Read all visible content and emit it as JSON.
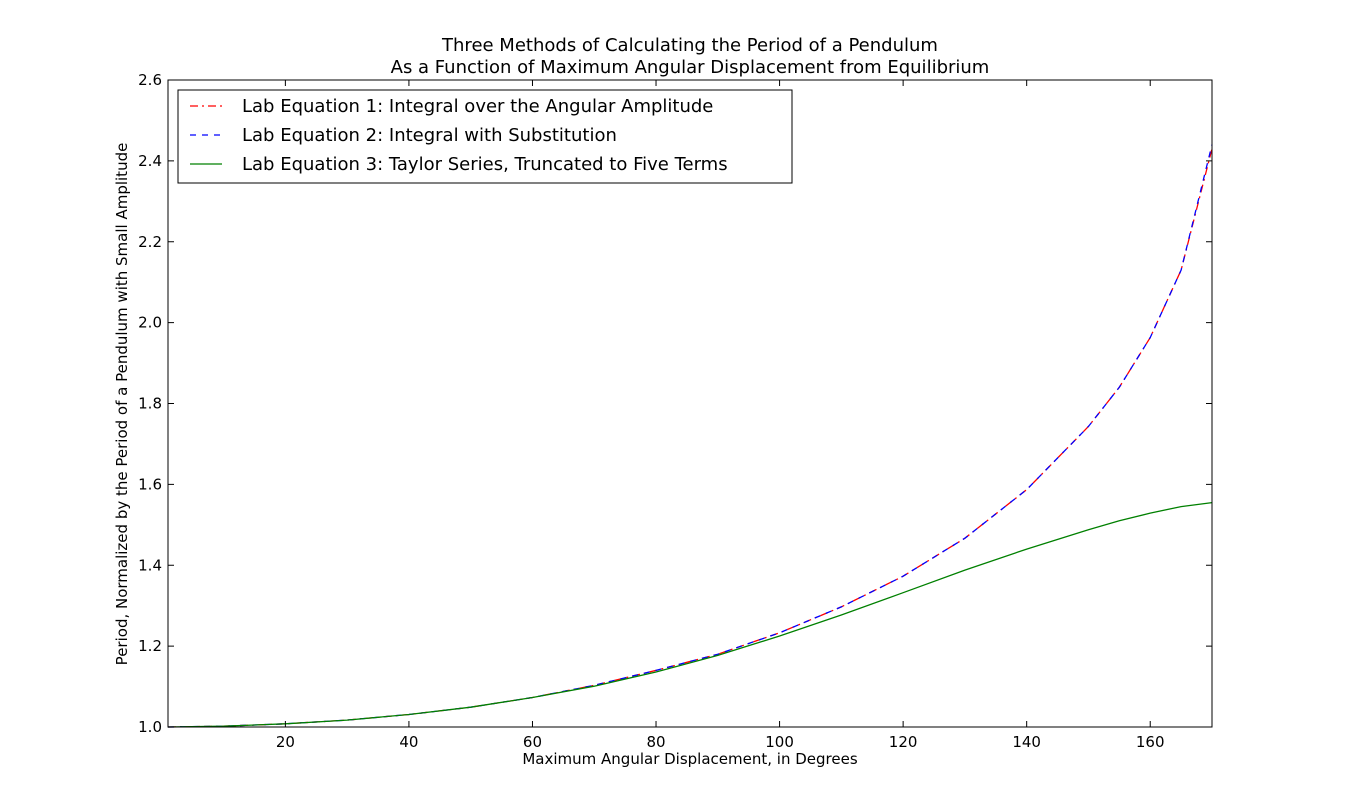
{
  "chart_data": {
    "type": "line",
    "title": "Three Methods of Calculating the Period of a Pendulum",
    "subtitle": "As a Function of Maximum Angular Displacement from Equilibrium",
    "xlabel": "Maximum Angular Displacement, in Degrees",
    "ylabel": "Period, Normalized by the Period of a Pendulum with Small Amplitude",
    "xlim": [
      1,
      170
    ],
    "ylim": [
      1.0,
      2.6
    ],
    "xticks": [
      20,
      40,
      60,
      80,
      100,
      120,
      140,
      160
    ],
    "xtick_labels": [
      "20",
      "40",
      "60",
      "80",
      "100",
      "120",
      "140",
      "160"
    ],
    "yticks": [
      1.0,
      1.2,
      1.4,
      1.6,
      1.8,
      2.0,
      2.2,
      2.4,
      2.6
    ],
    "ytick_labels": [
      "1.0",
      "1.2",
      "1.4",
      "1.6",
      "1.8",
      "2.0",
      "2.2",
      "2.4",
      "2.6"
    ],
    "grid": false,
    "legend_position": "top-left",
    "x": [
      1,
      10,
      20,
      30,
      40,
      50,
      60,
      70,
      80,
      90,
      100,
      110,
      120,
      130,
      140,
      150,
      155,
      160,
      165,
      170
    ],
    "series": [
      {
        "name": "Lab Equation 1: Integral over the Angular Amplitude",
        "color": "#ff0000",
        "style": "dashdot",
        "values": [
          1.0,
          1.002,
          1.008,
          1.017,
          1.031,
          1.049,
          1.073,
          1.103,
          1.14,
          1.18,
          1.233,
          1.297,
          1.373,
          1.467,
          1.587,
          1.743,
          1.84,
          1.963,
          2.13,
          2.43
        ]
      },
      {
        "name": "Lab Equation 2: Integral with Substitution",
        "color": "#0000ff",
        "style": "dashed",
        "values": [
          1.0,
          1.002,
          1.008,
          1.017,
          1.031,
          1.049,
          1.073,
          1.103,
          1.14,
          1.18,
          1.233,
          1.297,
          1.373,
          1.467,
          1.587,
          1.743,
          1.84,
          1.963,
          2.13,
          2.44
        ]
      },
      {
        "name": "Lab Equation 3: Taylor Series, Truncated to Five Terms",
        "color": "#008000",
        "style": "solid",
        "values": [
          1.0,
          1.002,
          1.008,
          1.017,
          1.031,
          1.049,
          1.073,
          1.101,
          1.136,
          1.177,
          1.225,
          1.277,
          1.332,
          1.388,
          1.44,
          1.488,
          1.51,
          1.529,
          1.545,
          1.555
        ]
      }
    ]
  }
}
